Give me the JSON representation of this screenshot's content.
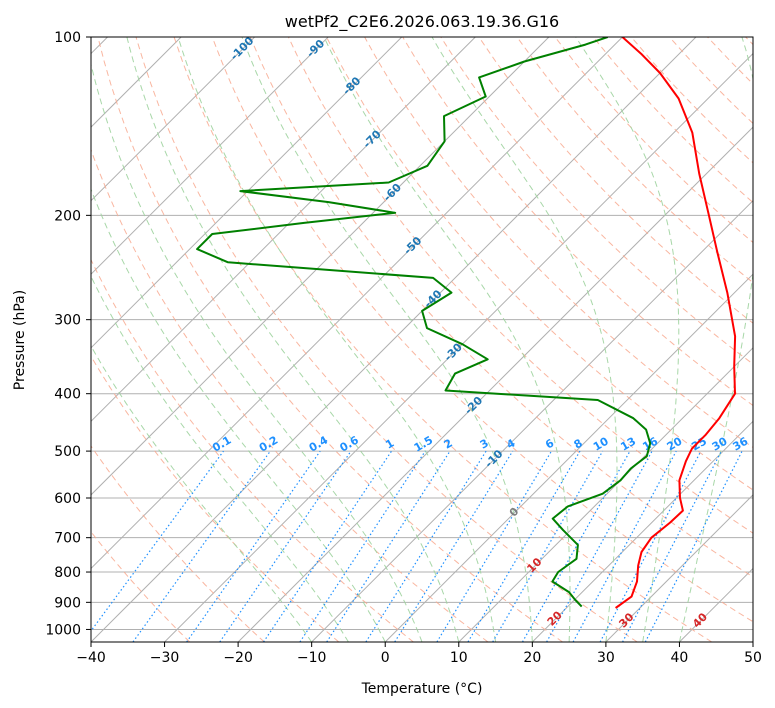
{
  "chart_data": {
    "type": "skew-t",
    "title": "wetPf2_C2E6.2026.063.19.36.G16",
    "xlabel": "Temperature (°C)",
    "ylabel": "Pressure (hPa)",
    "xlim": [
      -40,
      50
    ],
    "ylim": [
      1050,
      100
    ],
    "y_scale": "log",
    "x_ticks": [
      "−40",
      "−30",
      "−20",
      "−10",
      "0",
      "10",
      "20",
      "30",
      "40",
      "50"
    ],
    "y_ticks": [
      "100",
      "200",
      "300",
      "400",
      "500",
      "600",
      "700",
      "800",
      "900",
      "1000"
    ],
    "grid": true,
    "series": [
      {
        "color": "#ff0000",
        "points": [
          [
            26.7,
            920
          ],
          [
            27.3,
            880
          ],
          [
            26.0,
            830
          ],
          [
            24.0,
            780
          ],
          [
            22.6,
            740
          ],
          [
            22.0,
            700
          ],
          [
            22.5,
            660
          ],
          [
            22.6,
            630
          ],
          [
            20.5,
            600
          ],
          [
            18.0,
            560
          ],
          [
            16.3,
            520
          ],
          [
            15.4,
            495
          ],
          [
            15.4,
            470
          ],
          [
            15.0,
            440
          ],
          [
            13.8,
            400
          ],
          [
            10.0,
            360
          ],
          [
            6.0,
            320
          ],
          [
            -1.0,
            270
          ],
          [
            -8.0,
            230
          ],
          [
            -14.0,
            200
          ],
          [
            -21.0,
            170
          ],
          [
            -27.5,
            145
          ],
          [
            -34.0,
            127
          ],
          [
            -40.0,
            115
          ],
          [
            -45.0,
            107
          ],
          [
            -50.0,
            100
          ]
        ]
      },
      {
        "color": "#008000",
        "points": [
          [
            21.9,
            915
          ],
          [
            20.0,
            890
          ],
          [
            18.2,
            865
          ],
          [
            14.5,
            830
          ],
          [
            14.0,
            800
          ],
          [
            14.7,
            760
          ],
          [
            13.0,
            720
          ],
          [
            9.0,
            680
          ],
          [
            6.0,
            650
          ],
          [
            6.4,
            620
          ],
          [
            9.4,
            590
          ],
          [
            10.0,
            560
          ],
          [
            9.8,
            535
          ],
          [
            10.3,
            510
          ],
          [
            9.0,
            485
          ],
          [
            6.6,
            460
          ],
          [
            3.3,
            440
          ],
          [
            -4.0,
            410
          ],
          [
            -26.0,
            395
          ],
          [
            -27.0,
            370
          ],
          [
            -24.5,
            350
          ],
          [
            -30.0,
            330
          ],
          [
            -37.0,
            310
          ],
          [
            -40.0,
            290
          ],
          [
            -38.5,
            270
          ],
          [
            -43.0,
            255
          ],
          [
            -73.0,
            240
          ],
          [
            -79.0,
            228
          ],
          [
            -79.0,
            215
          ],
          [
            -68.0,
            206
          ],
          [
            -57.0,
            198
          ],
          [
            -67.5,
            190
          ],
          [
            -81.0,
            182
          ],
          [
            -62.0,
            176
          ],
          [
            -59.0,
            165
          ],
          [
            -60.0,
            150
          ],
          [
            -63.5,
            136
          ],
          [
            -60.5,
            126
          ],
          [
            -64.0,
            117
          ],
          [
            -60.0,
            110
          ],
          [
            -54.0,
            103
          ],
          [
            -52.0,
            100
          ]
        ]
      }
    ],
    "isotherm_labels": [
      "-100",
      "-90",
      "-80",
      "-70",
      "-60",
      "-50",
      "-40",
      "-30",
      "-20",
      "-10",
      "0",
      "10",
      "20",
      "30",
      "40"
    ],
    "mixing_ratio_labels": [
      "0.1",
      "0.2",
      "0.4",
      "0.6",
      "1",
      "1.5",
      "2",
      "3",
      "4",
      "6",
      "8",
      "10",
      "13",
      "16",
      "20",
      "25",
      "30",
      "36"
    ],
    "colors": {
      "temperature": "#ff0000",
      "dewpoint": "#008000",
      "grid": "#b0b0b0",
      "dry_adiabat": "#f8a98f",
      "moist_adiabat": "#9fd39f",
      "mixing_ratio": "#1e90ff",
      "isotherm_label_cold": "#1f77b4",
      "isotherm_label_warm": "#d62728",
      "isotherm_label_zero": "#7f7f7f"
    }
  }
}
